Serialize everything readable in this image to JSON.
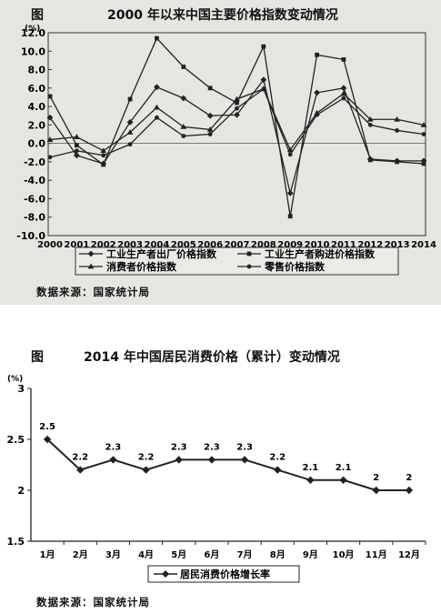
{
  "chart_data": [
    {
      "type": "line",
      "figure_label": "图",
      "title": "2000 年以来中国主要价格指数变动情况",
      "unit": "(%)",
      "categories": [
        "2000",
        "2001",
        "2002",
        "2003",
        "2004",
        "2005",
        "2006",
        "2007",
        "2008",
        "2009",
        "2010",
        "2011",
        "2012",
        "2013",
        "2014"
      ],
      "ylim": [
        -10,
        12
      ],
      "yticks": [
        12.0,
        10.0,
        8.0,
        6.0,
        4.0,
        2.0,
        0.0,
        -2.0,
        -4.0,
        -6.0,
        -8.0,
        -10.0
      ],
      "ytick_labels": [
        "12.0",
        "10.0",
        "8.0",
        "6.0",
        "4.0",
        "2.0",
        "0.0",
        "-2.0",
        "-4.0",
        "-6.0",
        "-8.0",
        "-10.0"
      ],
      "series": [
        {
          "name": "工业生产者出厂价格指数",
          "marker": "diamond",
          "values": [
            2.8,
            -1.3,
            -2.2,
            2.3,
            6.1,
            4.9,
            3.0,
            3.1,
            6.9,
            -5.4,
            5.5,
            6.0,
            -1.7,
            -1.9,
            -1.9
          ]
        },
        {
          "name": "工业生产者购进价格指数",
          "marker": "square",
          "values": [
            5.1,
            -0.2,
            -2.3,
            4.8,
            11.4,
            8.3,
            6.0,
            4.4,
            10.5,
            -7.9,
            9.6,
            9.1,
            -1.8,
            -2.0,
            -2.2
          ]
        },
        {
          "name": "消费者价格指数",
          "marker": "triangle",
          "values": [
            0.4,
            0.7,
            -0.8,
            1.2,
            3.9,
            1.8,
            1.5,
            4.8,
            5.9,
            -0.7,
            3.3,
            5.4,
            2.6,
            2.6,
            2.0
          ]
        },
        {
          "name": "零售价格指数",
          "marker": "circle",
          "values": [
            -1.5,
            -0.8,
            -1.3,
            -0.1,
            2.8,
            0.8,
            1.0,
            3.8,
            5.9,
            -1.2,
            3.1,
            4.9,
            2.0,
            1.4,
            1.0
          ]
        }
      ],
      "source": "数据来源：国家统计局"
    },
    {
      "type": "line",
      "figure_label": "图",
      "title": "2014 年中国居民消费价格（累计）变动情况",
      "unit": "(%)",
      "categories": [
        "1月",
        "2月",
        "3月",
        "4月",
        "5月",
        "6月",
        "7月",
        "8月",
        "9月",
        "10月",
        "11月",
        "12月"
      ],
      "ylim": [
        1.5,
        3
      ],
      "yticks": [
        3,
        2.5,
        2,
        1.5
      ],
      "ytick_labels": [
        "3",
        "2.5",
        "2",
        "1.5"
      ],
      "series": [
        {
          "name": "居民消费价格增长率",
          "marker": "diamond",
          "values": [
            2.5,
            2.2,
            2.3,
            2.2,
            2.3,
            2.3,
            2.3,
            2.2,
            2.1,
            2.1,
            2,
            2
          ],
          "data_labels": [
            "2.5",
            "2.2",
            "2.3",
            "2.2",
            "2.3",
            "2.3",
            "2.3",
            "2.2",
            "2.1",
            "2.1",
            "2",
            "2"
          ]
        }
      ],
      "source": "数据来源：国家统计局"
    }
  ]
}
